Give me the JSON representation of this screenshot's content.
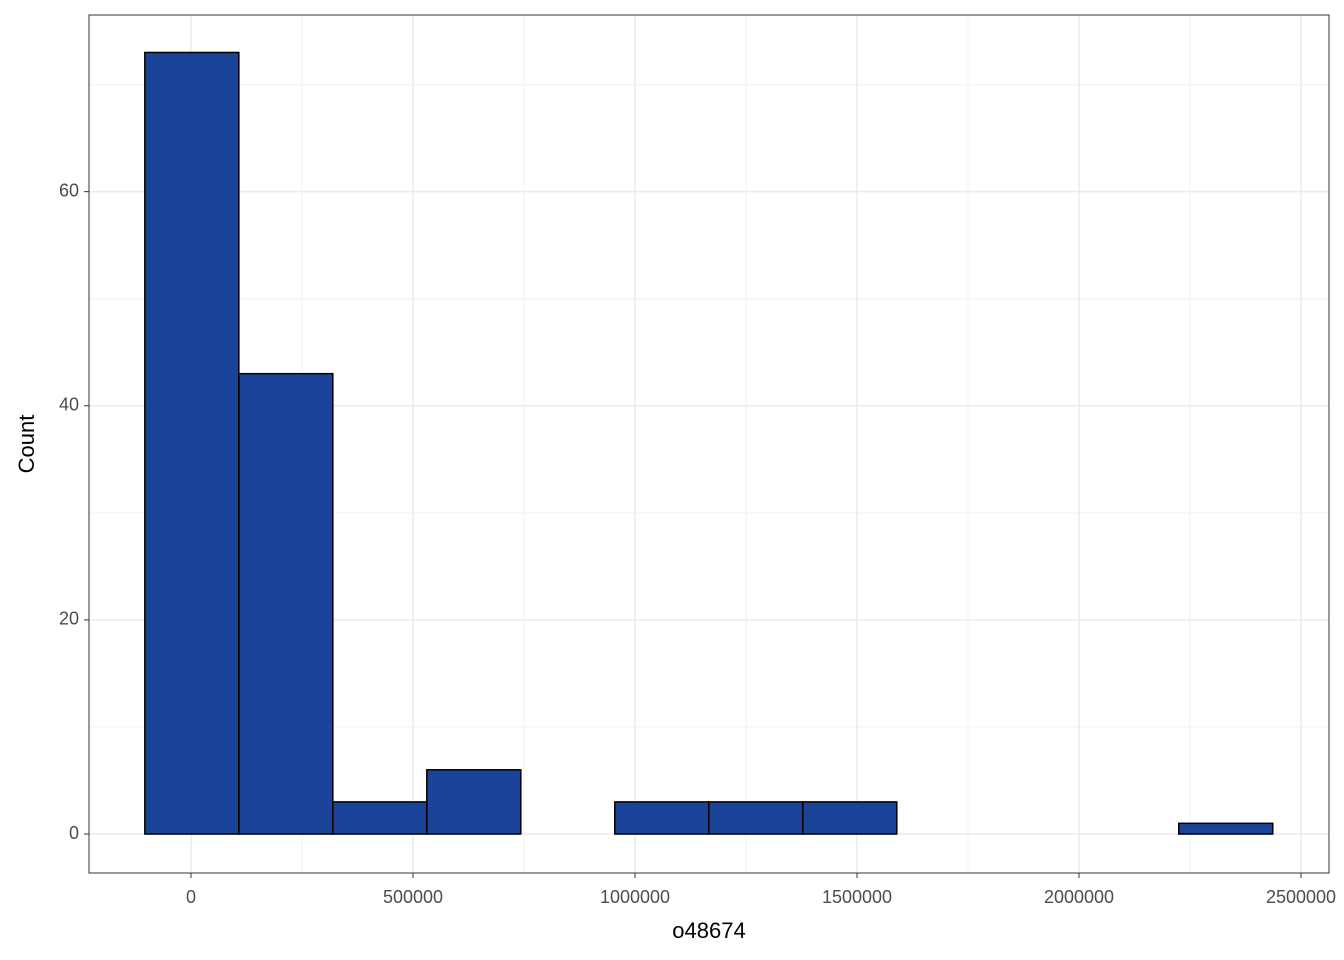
{
  "chart_data": {
    "type": "histogram",
    "x_label": "o48674",
    "y_label": "Count",
    "bins": [
      -104000,
      107700,
      319400,
      531100,
      742800,
      954500,
      1166200,
      1377900,
      1589600,
      1801300,
      2013000,
      2224700,
      2436400
    ],
    "counts": [
      73,
      43,
      3,
      6,
      0,
      3,
      3,
      3,
      0,
      0,
      0,
      1
    ],
    "color": "#1a4399",
    "edge_color": "#000000",
    "xlim": [
      -229730,
      2563063
    ],
    "ylim": [
      -3.64,
      76.5
    ],
    "xticks": [
      0,
      500000,
      1000000,
      1500000,
      2000000,
      2500000
    ],
    "yticks": [
      0,
      20,
      40,
      60
    ],
    "x_minor_grid": [
      250000,
      750000,
      1250000,
      1750000,
      2250000
    ],
    "y_minor_grid": [
      10,
      30,
      50,
      70
    ],
    "grid": true
  }
}
